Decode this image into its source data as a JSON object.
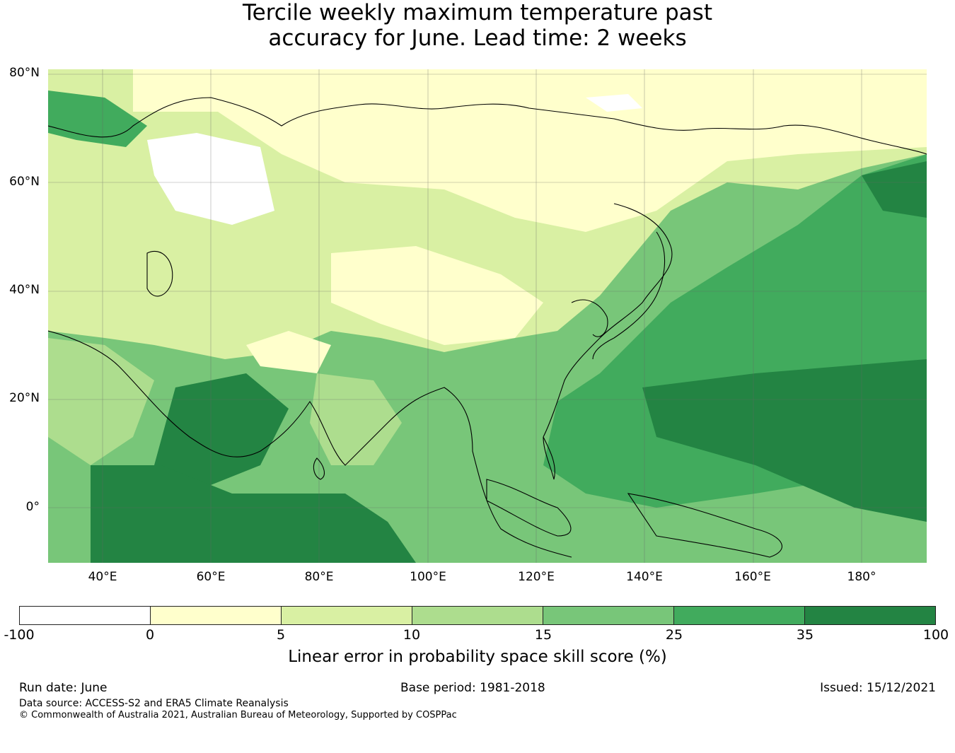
{
  "title_line1": "Tercile weekly maximum temperature past",
  "title_line2": "accuracy for June. Lead time: 2 weeks",
  "map": {
    "lat_labels": [
      "80°N",
      "60°N",
      "40°N",
      "20°N",
      "0°"
    ],
    "lon_labels": [
      "40°E",
      "60°E",
      "80°E",
      "100°E",
      "120°E",
      "140°E",
      "160°E",
      "180°"
    ],
    "extent": {
      "lon_min": 30,
      "lon_max": 192,
      "lat_min": -10,
      "lat_max": 81
    }
  },
  "colorbar": {
    "ticks": [
      "-100",
      "0",
      "5",
      "10",
      "15",
      "25",
      "35",
      "100"
    ],
    "colors": [
      "#ffffff",
      "#ffffcc",
      "#d9f0a3",
      "#addd8e",
      "#78c679",
      "#41ab5d",
      "#238443"
    ],
    "label": "Linear error in probability space skill score (%)"
  },
  "footer": {
    "run_date": "Run date: June",
    "base_period": "Base period: 1981-2018",
    "issued": "Issued: 15/12/2021",
    "data_source": "Data source: ACCESS-S2 and ERA5 Climate Reanalysis",
    "copyright": "© Commonwealth of Australia 2021, Australian Bureau of Meteorology, Supported by COSPPac"
  }
}
